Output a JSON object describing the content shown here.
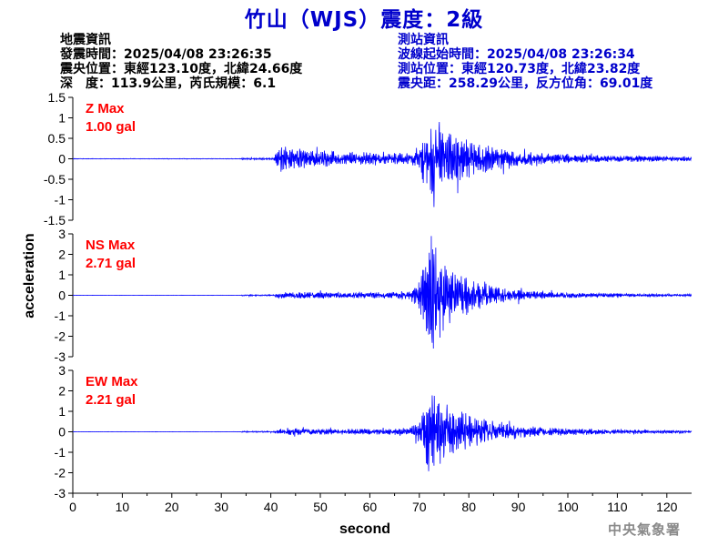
{
  "header": {
    "title": "竹山（WJS）震度：2級",
    "left_lines": [
      "地震資訊",
      "發震時間：2025/04/08 23:26:35",
      "震央位置：東經123.10度，北緯24.66度",
      "深　度：113.9公里，芮氏規模：6.1"
    ],
    "right_lines": [
      "測站資訊",
      "波線起始時間：2025/04/08 23:26:34",
      "測站位置：東經120.73度，北緯23.82度",
      "震央距：258.29公里，反方位角：69.01度"
    ]
  },
  "footer": {
    "agency": "中央氣象署"
  },
  "colors": {
    "title": "#0000cc",
    "trace": "#0000ff",
    "max_label": "#ff0000",
    "station_info": "#0000cc"
  },
  "chart_data": [
    {
      "type": "line",
      "name": "Z",
      "max_label": "Z Max",
      "max_value": "1.00 gal",
      "ylim": [
        -1.5,
        1.5
      ],
      "yticks": [
        -1.5,
        -1,
        -0.5,
        0,
        0.5,
        1,
        1.5
      ],
      "ytick_labels": [
        "-1.5",
        "-1",
        "-0.5",
        "0",
        "0.5",
        "1",
        "1.5"
      ],
      "envelope": {
        "t": [
          0,
          34,
          34.2,
          40.5,
          41.2,
          42,
          44,
          48,
          52,
          56,
          60,
          64,
          68,
          70,
          71.2,
          72,
          73,
          74,
          75,
          76,
          78,
          80,
          84,
          88,
          92,
          96,
          100,
          110,
          120,
          125
        ],
        "amp": [
          0.005,
          0.006,
          0.02,
          0.02,
          0.15,
          0.3,
          0.25,
          0.2,
          0.17,
          0.15,
          0.14,
          0.13,
          0.13,
          0.2,
          0.5,
          0.7,
          0.95,
          0.8,
          0.65,
          0.6,
          0.5,
          0.4,
          0.28,
          0.2,
          0.15,
          0.12,
          0.1,
          0.07,
          0.06,
          0.05
        ]
      }
    },
    {
      "type": "line",
      "name": "NS",
      "max_label": "NS Max",
      "max_value": "2.71 gal",
      "ylim": [
        -3,
        3
      ],
      "yticks": [
        -3,
        -2,
        -1,
        0,
        1,
        2,
        3
      ],
      "ytick_labels": [
        "-3",
        "-2",
        "-1",
        "0",
        "1",
        "2",
        "3"
      ],
      "envelope": {
        "t": [
          0,
          34,
          34.2,
          40.5,
          41.2,
          44,
          48,
          56,
          64,
          68,
          70,
          71.2,
          72,
          72.6,
          73.5,
          75,
          77,
          80,
          84,
          88,
          92,
          100,
          110,
          120,
          125
        ],
        "amp": [
          0.005,
          0.005,
          0.03,
          0.03,
          0.12,
          0.17,
          0.15,
          0.13,
          0.14,
          0.2,
          0.6,
          1.6,
          2.3,
          2.7,
          2.0,
          1.6,
          1.0,
          0.8,
          0.45,
          0.3,
          0.2,
          0.12,
          0.08,
          0.06,
          0.05
        ]
      }
    },
    {
      "type": "line",
      "name": "EW",
      "max_label": "EW Max",
      "max_value": "2.21 gal",
      "ylim": [
        -3,
        3
      ],
      "yticks": [
        -3,
        -2,
        -1,
        0,
        1,
        2,
        3
      ],
      "ytick_labels": [
        "-3",
        "-2",
        "-1",
        "0",
        "1",
        "2",
        "3"
      ],
      "envelope": {
        "t": [
          0,
          34,
          34.2,
          40.5,
          41.2,
          44,
          48,
          56,
          64,
          68,
          70,
          71.2,
          72,
          72.6,
          73.5,
          75,
          77,
          80,
          84,
          88,
          92,
          100,
          110,
          120,
          125
        ],
        "amp": [
          0.005,
          0.005,
          0.03,
          0.03,
          0.1,
          0.15,
          0.14,
          0.13,
          0.14,
          0.18,
          0.5,
          1.4,
          2.0,
          2.2,
          1.7,
          1.3,
          1.0,
          0.8,
          0.5,
          0.35,
          0.25,
          0.15,
          0.1,
          0.07,
          0.06
        ]
      }
    }
  ],
  "axes": {
    "xlabel": "second",
    "ylabel": "acceleration",
    "xlim": [
      0,
      125
    ],
    "xticks": [
      0,
      10,
      20,
      30,
      40,
      50,
      60,
      70,
      80,
      90,
      100,
      110,
      120
    ],
    "xtick_labels": [
      "0",
      "10",
      "20",
      "30",
      "40",
      "50",
      "60",
      "70",
      "80",
      "90",
      "100",
      "110",
      "120"
    ]
  }
}
